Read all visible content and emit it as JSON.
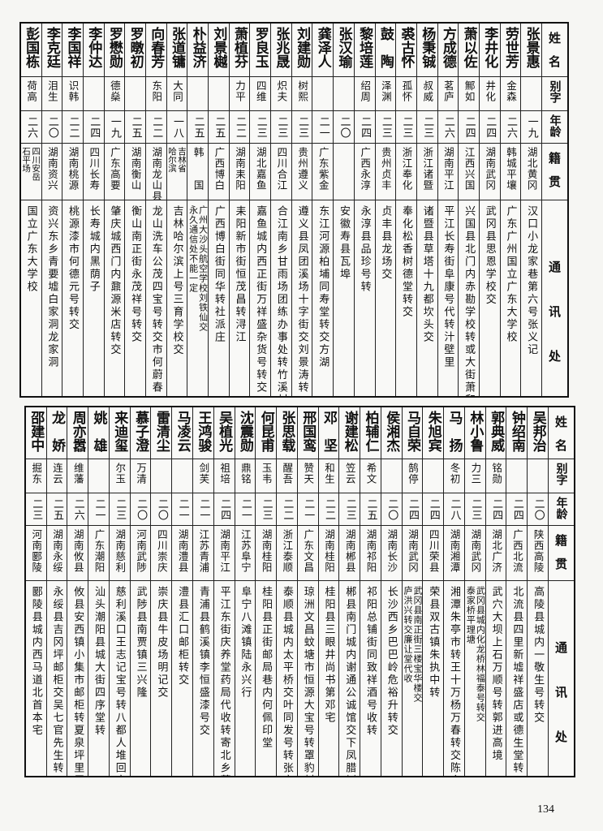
{
  "header": {
    "name": "姓名",
    "alias": "别字",
    "age": "年龄",
    "origin": "籍贯",
    "address": "通讯处"
  },
  "top": {
    "rows": [
      {
        "name": "张景惠",
        "alias": "",
        "age": "一九",
        "origin": [
          "湖北黄冈"
        ],
        "address": [
          "汉口小龙家巷第六号张义记"
        ]
      },
      {
        "name": "劳世芳",
        "alias": "金森",
        "age": "二六",
        "origin": [
          "韩城平壤"
        ],
        "address": [
          "广东广州国立广东大学校"
        ]
      },
      {
        "name": "李井化",
        "alias": "井化",
        "age": "二四",
        "origin": [
          "湖南武冈"
        ],
        "address": [
          "武冈县思恩学校交"
        ]
      },
      {
        "name": "萧以佐",
        "alias": "鄦如",
        "age": "二四",
        "origin": [
          "江西兴国"
        ],
        "address": [
          "兴国县北门内赤勘学校转或大街萧和馨号转"
        ]
      },
      {
        "name": "方成德",
        "alias": "茗庐",
        "age": "二六",
        "origin": [
          "湖南平江"
        ],
        "address": [
          "平江长寿街阜康号代转汁壁里"
        ]
      },
      {
        "name": "杨秉铖",
        "alias": "叔威",
        "age": "二三",
        "origin": [
          "浙江诸暨"
        ],
        "address": [
          "诸暨县草塔十九都坎头交"
        ]
      },
      {
        "name": "裘古怀",
        "alias": "孤怀",
        "age": "二三",
        "origin": [
          "浙江奉化"
        ],
        "address": [
          "奉化松香树德堂转交"
        ]
      },
      {
        "name": "鼓　陶",
        "alias": "泽渊",
        "age": "二三",
        "origin": [
          "贵州贞丰"
        ],
        "address": [
          "贞丰县龙场交"
        ]
      },
      {
        "name": "黎培莲",
        "alias": "绍周",
        "age": "二四",
        "origin": [
          "广西永淳"
        ],
        "address": [
          "永淳县品珍号转"
        ]
      },
      {
        "name": "张汉瑜",
        "alias": "",
        "age": "二〇",
        "origin": [
          ""
        ],
        "address": [
          "安徽寿县瓦埠"
        ]
      },
      {
        "name": "龚泽人",
        "alias": "",
        "age": "二一",
        "origin": [
          "广东紫金"
        ],
        "address": [
          "东江河源柏埔同寿堂转交方湖"
        ]
      },
      {
        "name": "刘建勋",
        "alias": "树熙",
        "age": "二三",
        "origin": [
          "贵州遵义"
        ],
        "address": [
          "遵义县凤团溪场十字街交刘景涛转"
        ]
      },
      {
        "name": "张兆晟",
        "alias": "炽夫",
        "age": "二三",
        "origin": [
          "四川合江"
        ],
        "address": [
          "合江南乡甘雨场团练办事处转竹溪村"
        ]
      },
      {
        "name": "罗良玉",
        "alias": "四维",
        "age": "二三",
        "origin": [
          "湖北嘉鱼"
        ],
        "address": [
          "嘉鱼城内西正街万祥盛杂货号转交"
        ]
      },
      {
        "name": "萧植芬",
        "alias": "力平",
        "age": "二二",
        "origin": [
          "湖南耒阳"
        ],
        "address": [
          "耒阳新市街恒茂昌转浔江"
        ]
      },
      {
        "name": "刘景樾",
        "alias": "",
        "age": "二五",
        "origin": [
          "广西博白"
        ],
        "address": [
          "广西博白街同华转社派庄"
        ]
      },
      {
        "name": "朴益济",
        "alias": "",
        "age": "二五",
        "origin": [
          "韩　　国"
        ],
        "address": [
          "广州大沙头航空学校刘铁仙交",
          "永久通信处不能一定"
        ]
      },
      {
        "name": "张道镛",
        "alias": "大同",
        "age": "一八",
        "origin": [
          "吉林省",
          "哈尔滨"
        ],
        "address": [
          "吉林哈尔滨上号三育学校交"
        ]
      },
      {
        "name": "向春芳",
        "alias": "东阳",
        "age": "二二",
        "origin": [
          "湖南龙山县"
        ],
        "address": [
          "龙山洗车公茂四宝号转交市何蔚春"
        ]
      },
      {
        "name": "罗暾初",
        "alias": "",
        "age": "二五",
        "origin": [
          "湖南衡山"
        ],
        "address": [
          "衡山南正街永茂祥号转交"
        ]
      },
      {
        "name": "罗懋勋",
        "alias": "德燊",
        "age": "一九",
        "origin": [
          "广东高要"
        ],
        "address": [
          "肇庆城西门内鼐源米店转交"
        ]
      },
      {
        "name": "李仲达",
        "alias": "",
        "age": "二四",
        "origin": [
          "四川长寿"
        ],
        "address": [
          "长寿城内黑荫子"
        ]
      },
      {
        "name": "李国祥",
        "alias": "识韩",
        "age": "二二",
        "origin": [
          "湖南桃源"
        ],
        "address": [
          "桃源漆市何德元号转交"
        ]
      },
      {
        "name": "李克廷",
        "alias": "泪生",
        "age": "二〇",
        "origin": [
          "湖南资兴"
        ],
        "address": [
          "资兴东乡青要墟白家洞龙家洞"
        ]
      },
      {
        "name": "彭国栋",
        "alias": "荷高",
        "age": "二六",
        "origin": [
          "四川安岳",
          "石平场"
        ],
        "address": [
          "国立广东大学校"
        ]
      }
    ]
  },
  "bottom": {
    "rows": [
      {
        "name": "吴邦治",
        "alias": "",
        "age": "二〇",
        "origin": [
          "陕西高陵"
        ],
        "address": [
          "高陵县城内一敬生号转交"
        ]
      },
      {
        "name": "钟绍南",
        "alias": "",
        "age": "二四",
        "origin": [
          "广西北流"
        ],
        "address": [
          "北流县四里新墟祥盛店或德生堂转"
        ]
      },
      {
        "name": "郭典威",
        "alias": "铭勋",
        "age": "二四",
        "origin": [
          "湖北广济"
        ],
        "address": [
          "武穴大坝上石万顺号转郭进高境"
        ]
      },
      {
        "name": "林小鲁",
        "alias": "力三",
        "age": "二三",
        "origin": [
          "湖南武冈"
        ],
        "address": [
          "武冈县城内化龙桥林福泰号转交",
          "泰家桥平理塘"
        ]
      },
      {
        "name": "马　扬",
        "alias": "冬初",
        "age": "二八",
        "origin": [
          "湖南湘潭"
        ],
        "address": [
          "湘潭朱亭市转王十万杨万春转交陈家湾"
        ]
      },
      {
        "name": "朱旭宾",
        "alias": "",
        "age": "二四",
        "origin": [
          "四川荣县"
        ],
        "address": [
          "荣县双古镇朱执中转"
        ]
      },
      {
        "name": "马自荣",
        "alias": "鹄停",
        "age": "二四",
        "origin": [
          "湖南武冈"
        ],
        "address": [
          "武冈县南正街三楼宝华楼交",
          "庐洪兴转交廉让堂代收"
        ]
      },
      {
        "name": "侯湘杰",
        "alias": "",
        "age": "二〇",
        "origin": [
          "湖南长沙"
        ],
        "address": [
          "长沙西乡巴巴岭危裕升转交"
        ]
      },
      {
        "name": "柏辅仁",
        "alias": "希文",
        "age": "二五",
        "origin": [
          "湖南祁阳"
        ],
        "address": [
          "祁阳总铺街同致祥酒号收转"
        ]
      },
      {
        "name": "谢建松",
        "alias": "笠云",
        "age": "二三",
        "origin": [
          "湖南郴县"
        ],
        "address": [
          "郴县南门城内谢通公诚馆交下凤腊树湾"
        ]
      },
      {
        "name": "邓　坚",
        "alias": "和生",
        "age": "二二",
        "origin": [
          "湖南桂阳"
        ],
        "address": [
          "桂阳县三眼井尚书第邓宅"
        ]
      },
      {
        "name": "邢国鸾",
        "alias": "赞天",
        "age": "二一",
        "origin": [
          "广东文昌"
        ],
        "address": [
          "琼洲文昌蚊塘市恒源大宝号转罩豹村"
        ]
      },
      {
        "name": "张思载",
        "alias": "醒吾",
        "age": "二二",
        "origin": [
          "浙江泰顺"
        ],
        "address": [
          "泰顺县城内太平桥交叶同发号转张宅"
        ]
      },
      {
        "name": "何昆甫",
        "alias": "玉韦",
        "age": "二三",
        "origin": [
          "湖南桂阳"
        ],
        "address": [
          "桂阳县正街邮局巷内何佩印堂"
        ]
      },
      {
        "name": "沈震勋",
        "alias": "鼎铭",
        "age": "二一",
        "origin": [
          "江苏阜宁"
        ],
        "address": [
          "阜宁八滩镇陆永兴行"
        ]
      },
      {
        "name": "吴植光",
        "alias": "祖培",
        "age": "二四",
        "origin": [
          "湖南平江"
        ],
        "address": [
          "平江东街庆养堂药局代收转寄北乡菖蒲源"
        ]
      },
      {
        "name": "王鸿骏",
        "alias": "剑芙",
        "age": "二一",
        "origin": [
          "江苏青浦"
        ],
        "address": [
          "青浦县鹤溪镇李恒盛漆号交"
        ]
      },
      {
        "name": "马凌云",
        "alias": "",
        "age": "二一",
        "origin": [
          "湖南澧县"
        ],
        "address": [
          "澧县汇口邮柜转交"
        ]
      },
      {
        "name": "雷清尘",
        "alias": "",
        "age": "二〇",
        "origin": [
          "四川崇庆"
        ],
        "address": [
          "崇庆县牛皮场明记交"
        ]
      },
      {
        "name": "慕子澄",
        "alias": "万清",
        "age": "二〇",
        "origin": [
          "河南武陟"
        ],
        "address": [
          "武陟县南贾镇三兴隆"
        ]
      },
      {
        "name": "来迪玺",
        "alias": "尔玉",
        "age": "二三",
        "origin": [
          "湖南慈利"
        ],
        "address": [
          "慈利溪口王志记宝号转八都人堆回交"
        ]
      },
      {
        "name": "姚　雄",
        "alias": "",
        "age": "二一",
        "origin": [
          "广东潮阳"
        ],
        "address": [
          "汕头潮阳县城大街四序堂转"
        ]
      },
      {
        "name": "周亦嚣",
        "alias": "维藩",
        "age": "二六",
        "origin": [
          "湖南攸县"
        ],
        "address": [
          "攸县安西镇小集市邮柜转夏泉坪里屋"
        ]
      },
      {
        "name": "龙　娇",
        "alias": "连云",
        "age": "二五",
        "origin": [
          "湖南永绥"
        ],
        "address": [
          "永绥县吉冈坪邮柜交吴七官先生转"
        ]
      },
      {
        "name": "邵建中",
        "alias": "掘东",
        "age": "二三",
        "origin": [
          "河南郾陵"
        ],
        "address": [
          "郾陵县城内西马道北首本宅"
        ]
      }
    ]
  },
  "page_number": "134"
}
